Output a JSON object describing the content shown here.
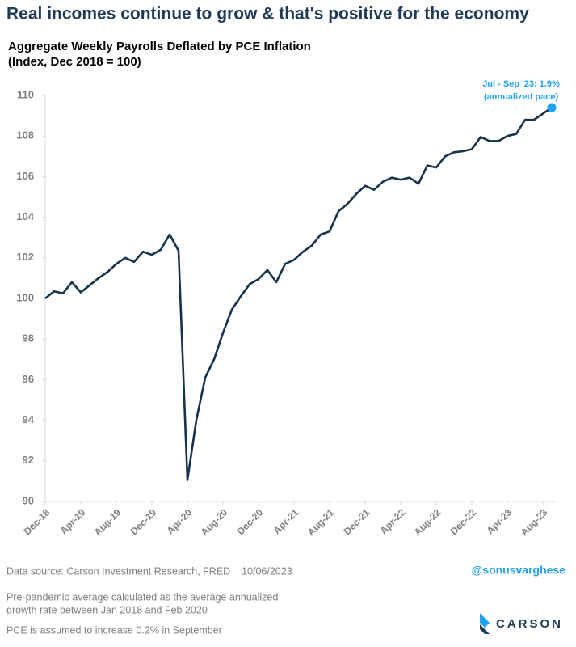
{
  "chart_data": {
    "type": "line",
    "title": "Real incomes continue to grow & that's positive for the economy",
    "subtitle": [
      "Aggregate Weekly Payrolls Deflated by PCE Inflation",
      "(Index, Dec 2018 = 100)"
    ],
    "categories": [
      "Dec-18",
      null,
      null,
      null,
      "Apr-19",
      null,
      null,
      null,
      "Aug-19",
      null,
      null,
      null,
      "Dec-19",
      null,
      null,
      null,
      "Apr-20",
      null,
      null,
      null,
      "Aug-20",
      null,
      null,
      null,
      "Dec-20",
      null,
      null,
      null,
      "Apr-21",
      null,
      null,
      null,
      "Aug-21",
      null,
      null,
      null,
      "Dec-21",
      null,
      null,
      null,
      "Apr-22",
      null,
      null,
      null,
      "Aug-22",
      null,
      null,
      null,
      "Dec-22",
      null,
      null,
      null,
      "Apr-23",
      null,
      null,
      null,
      "Aug-23",
      null
    ],
    "values": [
      100.0,
      100.35,
      100.25,
      100.8,
      100.3,
      100.65,
      101.0,
      101.3,
      101.7,
      102.0,
      101.8,
      102.3,
      102.15,
      102.4,
      103.15,
      102.35,
      91.05,
      94.0,
      96.1,
      97.0,
      98.3,
      99.45,
      100.1,
      100.7,
      100.95,
      101.4,
      100.8,
      101.7,
      101.9,
      102.3,
      102.6,
      103.15,
      103.3,
      104.3,
      104.65,
      105.15,
      105.55,
      105.35,
      105.75,
      105.95,
      105.85,
      105.95,
      105.65,
      106.55,
      106.45,
      107.0,
      107.2,
      107.25,
      107.35,
      107.95,
      107.75,
      107.75,
      108.0,
      108.1,
      108.8,
      108.8,
      109.1,
      109.4
    ],
    "color": "#17324d",
    "highlight_color": "#1da1f2",
    "annotation": [
      "Jul - Sep '23: 1.9%",
      "(annualized pace)"
    ],
    "ylim": [
      90,
      110
    ],
    "yticks": [
      90,
      92,
      94,
      96,
      98,
      100,
      102,
      104,
      106,
      108,
      110
    ],
    "grid": false
  },
  "footer": {
    "source": "Data source: Carson Investment Research, FRED    10/06/2023",
    "handle": "@sonusvarghese",
    "notes": [
      "Pre-pandemic average calculated as the average annualized",
      "growth rate between Jan 2018 and Feb 2020"
    ],
    "assumption": "PCE is assumed to increase 0.2% in September",
    "brand": "CARSON"
  }
}
